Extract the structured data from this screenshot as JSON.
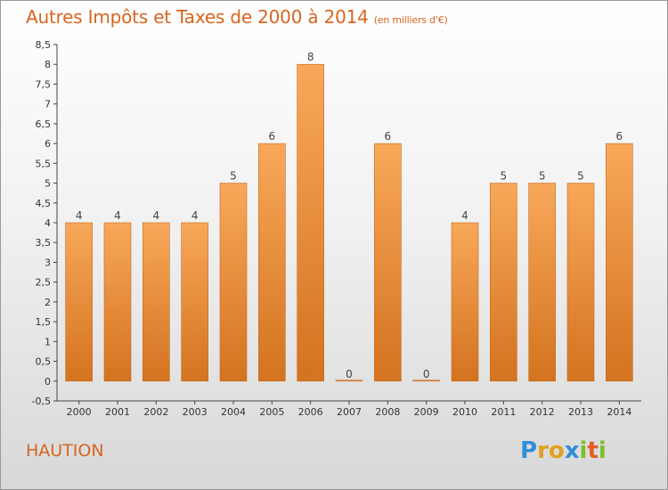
{
  "title": "Autres Impôts et Taxes de 2000 à 2014",
  "unit": "(en milliers d'€)",
  "commune": "HAUTION",
  "logo": {
    "letters": [
      "P",
      "r",
      "o",
      "x",
      "i",
      "t",
      "i"
    ],
    "colors": [
      "#2f8fd8",
      "#e2a020",
      "#e2a020",
      "#2f8fd8",
      "#7bbf2a",
      "#e25c20",
      "#7bbf2a"
    ]
  },
  "colors": {
    "title": "#d9641f",
    "bar_top": "#f8a85a",
    "bar_bottom": "#d3731f"
  },
  "chart_data": {
    "type": "bar",
    "categories": [
      "2000",
      "2001",
      "2002",
      "2003",
      "2004",
      "2005",
      "2006",
      "2007",
      "2008",
      "2009",
      "2010",
      "2011",
      "2012",
      "2013",
      "2014"
    ],
    "values": [
      4,
      4,
      4,
      4,
      5,
      6,
      8,
      0,
      6,
      0,
      4,
      5,
      5,
      5,
      6
    ],
    "ylim": [
      -0.5,
      8.5
    ],
    "yticks": [
      "-0,5",
      "0",
      "0,5",
      "1",
      "1,5",
      "2",
      "2,5",
      "3",
      "3,5",
      "4",
      "4,5",
      "5",
      "5,5",
      "6",
      "6,5",
      "7",
      "7,5",
      "8",
      "8,5"
    ],
    "ytick_values": [
      -0.5,
      0,
      0.5,
      1,
      1.5,
      2,
      2.5,
      3,
      3.5,
      4,
      4.5,
      5,
      5.5,
      6,
      6.5,
      7,
      7.5,
      8,
      8.5
    ],
    "grid": false,
    "legend": "none"
  }
}
